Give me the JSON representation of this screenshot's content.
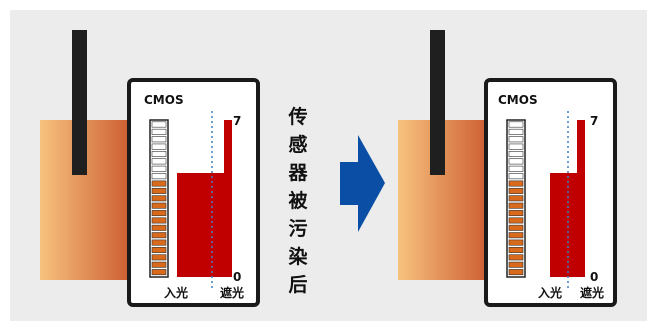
{
  "colors": {
    "background": "#ececec",
    "block_gradient_left": "#f7c27e",
    "block_gradient_right": "#c8532a",
    "rod": "#1f1f1f",
    "panel_border": "#1a1a1a",
    "bar_fill": "#c00000",
    "arrow": "#0a4fa5",
    "led_lit": "#d9691b",
    "led_off": "#ffffff",
    "dashed_line": "#3f7fc4"
  },
  "caption": [
    "传",
    "感",
    "器",
    "被",
    "污",
    "染",
    "后"
  ],
  "panels": [
    {
      "title": "CMOS",
      "max_label": "7",
      "min_label": "0",
      "left_label": "入光",
      "right_label": "遮光",
      "led_total": 21,
      "led_lit": 13
    },
    {
      "title": "CMOS",
      "max_label": "7",
      "min_label": "0",
      "left_label": "入光",
      "right_label": "遮光",
      "led_total": 21,
      "led_lit": 13
    }
  ]
}
